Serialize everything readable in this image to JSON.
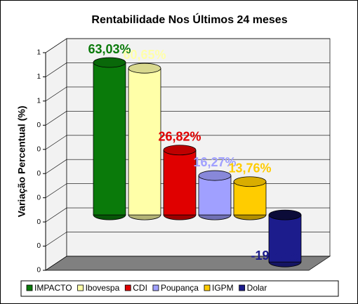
{
  "chart_data": {
    "type": "bar3d",
    "title": "Rentabilidade Nos Últimos 24 meses",
    "y_label": "Variação Percentual (%)",
    "ylim": [
      -0.2,
      0.7
    ],
    "yticks": [
      {
        "value": -0.2,
        "label": "0"
      },
      {
        "value": -0.1,
        "label": "0"
      },
      0,
      {
        "value": 0.1,
        "label": "0"
      },
      {
        "value": 0.2,
        "label": "0"
      },
      {
        "value": 0.3,
        "label": "0"
      },
      {
        "value": 0.4,
        "label": "0"
      },
      {
        "value": 0.5,
        "label": "1"
      },
      {
        "value": 0.6,
        "label": "1"
      },
      {
        "value": 0.7,
        "label": "1"
      }
    ],
    "grid": true,
    "legend": "bottom",
    "series": [
      {
        "name": "IMPACTO",
        "color": "#0a7a0a",
        "values": [
          0.6303
        ],
        "value_labels": [
          "63,03%"
        ]
      },
      {
        "name": "Ibovespa",
        "color": "#ffffa8",
        "values": [
          0.6065
        ],
        "value_labels": [
          "60,65%"
        ]
      },
      {
        "name": "CDI",
        "color": "#e00000",
        "values": [
          0.2682
        ],
        "value_labels": [
          "26,82%"
        ]
      },
      {
        "name": "Poupança",
        "color": "#a0a0ff",
        "values": [
          0.1627
        ],
        "value_labels": [
          "16,27%"
        ]
      },
      {
        "name": "IGPM",
        "color": "#ffcc00",
        "values": [
          0.1376
        ],
        "value_labels": [
          "13,76%"
        ]
      },
      {
        "name": "Dolar",
        "color": "#1c1c8c",
        "values": [
          -0.1947
        ],
        "value_labels": [
          "-19,47%"
        ]
      }
    ]
  }
}
